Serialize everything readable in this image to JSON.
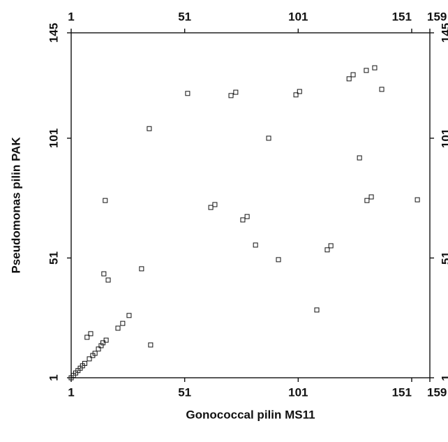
{
  "chart_data": {
    "type": "scatter",
    "x_label": "Gonococcal pilin MS11",
    "y_label": "Pseudomonas pilin PAK",
    "x": [
      1,
      2,
      3,
      4,
      5,
      6,
      7,
      9,
      10.5,
      11.5,
      13,
      14.2,
      15,
      16.4,
      8,
      9.6,
      16,
      15.4,
      17.3,
      21.6,
      23.7,
      26.5,
      32,
      35.4,
      36,
      52.3,
      62.5,
      64.3,
      71.4,
      73.5,
      76.6,
      78.5,
      82.2,
      88,
      92.3,
      100,
      101.6,
      109.2,
      113.8,
      115.4,
      123.4,
      125.2,
      128,
      131.3,
      133.2,
      131,
      134.7,
      137.8,
      153.5
    ],
    "values": [
      1,
      2,
      3,
      4,
      5,
      6,
      7,
      8.9,
      10.3,
      11.2,
      13,
      14.4,
      15.6,
      16.7,
      17.9,
      19.4,
      75,
      44.4,
      41.8,
      21.7,
      23.7,
      27,
      46.5,
      105,
      14.7,
      119.7,
      72.1,
      73.3,
      118.8,
      120.2,
      66.9,
      68.3,
      56.4,
      101,
      50.3,
      119.1,
      120.5,
      29.3,
      54.4,
      56.1,
      125.8,
      127.5,
      92.8,
      75,
      76.5,
      129.3,
      130.4,
      121.4,
      75.3
    ],
    "xlim": [
      1,
      159
    ],
    "ylim": [
      1,
      145
    ],
    "xticks": [
      1,
      51,
      101,
      151,
      159
    ],
    "yticks": [
      1,
      51,
      101,
      145
    ],
    "color": "#111111"
  }
}
